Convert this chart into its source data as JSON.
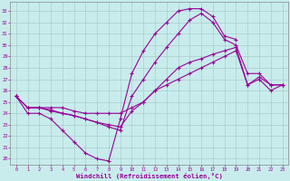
{
  "xlabel": "Windchill (Refroidissement éolien,°C)",
  "bg_color": "#c8ecec",
  "line_color": "#990099",
  "grid_color": "#b0d8d8",
  "xlim": [
    -0.5,
    23.5
  ],
  "ylim": [
    19.5,
    33.8
  ],
  "yticks": [
    20,
    21,
    22,
    23,
    24,
    25,
    26,
    27,
    28,
    29,
    30,
    31,
    32,
    33
  ],
  "xticks": [
    0,
    1,
    2,
    3,
    4,
    5,
    6,
    7,
    8,
    9,
    10,
    11,
    12,
    13,
    14,
    15,
    16,
    17,
    18,
    19,
    20,
    21,
    22,
    23
  ],
  "line1_x": [
    0,
    1,
    2,
    3,
    4,
    5,
    6,
    7,
    8,
    9,
    10,
    11,
    12,
    13,
    14,
    15,
    16,
    17,
    18,
    19
  ],
  "line1_y": [
    25.5,
    24.0,
    24.0,
    23.5,
    22.5,
    21.5,
    20.5,
    20.0,
    19.8,
    23.5,
    27.5,
    29.5,
    31.0,
    32.0,
    33.0,
    33.2,
    33.2,
    32.5,
    30.8,
    30.5
  ],
  "line2_x": [
    0,
    1,
    2,
    3,
    4,
    5,
    6,
    7,
    8,
    9,
    10,
    11,
    12,
    13,
    14,
    15,
    16,
    17,
    18,
    19,
    20,
    21,
    22,
    23
  ],
  "line2_y": [
    25.5,
    24.5,
    24.5,
    24.2,
    24.0,
    23.8,
    23.5,
    23.2,
    22.8,
    22.5,
    25.5,
    27.0,
    28.5,
    29.8,
    31.0,
    32.2,
    32.8,
    32.0,
    30.5,
    30.0,
    27.5,
    27.5,
    26.5,
    26.5
  ],
  "line3_x": [
    0,
    1,
    2,
    3,
    4,
    5,
    6,
    7,
    8,
    9,
    10,
    11,
    12,
    13,
    14,
    15,
    16,
    17,
    18,
    19,
    20,
    21,
    22,
    23
  ],
  "line3_y": [
    25.5,
    24.5,
    24.5,
    24.5,
    24.5,
    24.2,
    24.0,
    24.0,
    24.0,
    24.0,
    24.5,
    25.0,
    26.0,
    26.5,
    27.0,
    27.5,
    28.0,
    28.5,
    29.0,
    29.5,
    26.5,
    27.0,
    26.0,
    26.5
  ],
  "line4_x": [
    0,
    1,
    2,
    3,
    4,
    5,
    6,
    7,
    8,
    9,
    10,
    11,
    12,
    13,
    14,
    15,
    16,
    17,
    18,
    19,
    20,
    21,
    22,
    23
  ],
  "line4_y": [
    25.5,
    24.5,
    24.5,
    24.3,
    24.0,
    23.8,
    23.5,
    23.2,
    23.0,
    22.8,
    24.2,
    25.0,
    26.0,
    27.0,
    28.0,
    28.5,
    28.8,
    29.2,
    29.5,
    29.8,
    26.5,
    27.2,
    26.5,
    26.5
  ]
}
